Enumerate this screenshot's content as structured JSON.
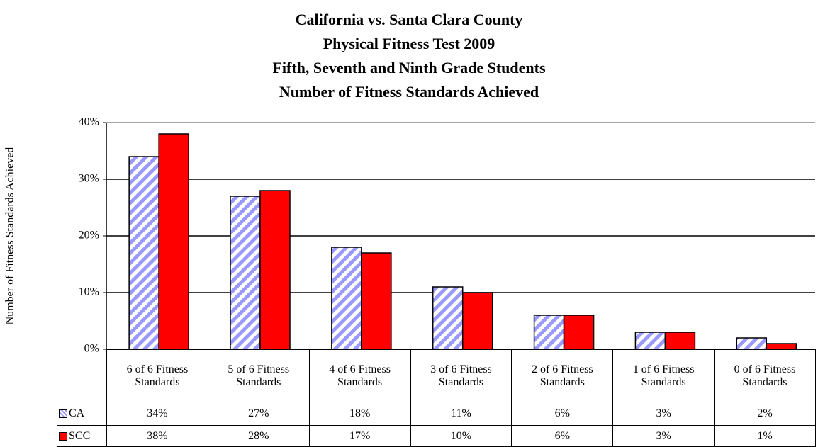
{
  "chart_data": {
    "type": "bar",
    "title": [
      "California vs. Santa Clara County",
      "Physical Fitness Test 2009",
      "Fifth, Seventh and Ninth Grade Students",
      "Number of Fitness Standards Achieved"
    ],
    "y_axis_label": "Number of Fitness Standards Achieved",
    "categories": [
      "6 of 6 Fitness Standards",
      "5 of 6 Fitness Standards",
      "4 of 6 Fitness Standards",
      "3 of 6 Fitness Standards",
      "2 of 6 Fitness Standards",
      "1 of 6 Fitness Standards",
      "0 of 6 Fitness Standards"
    ],
    "series": [
      {
        "name": "CA",
        "color": "#9999ff",
        "pattern": "diagonal-stripes",
        "values": [
          34,
          27,
          18,
          11,
          6,
          3,
          2
        ],
        "value_labels": [
          "34%",
          "27%",
          "18%",
          "11%",
          "6%",
          "3%",
          "2%"
        ]
      },
      {
        "name": "SCC",
        "color": "#ff0000",
        "values": [
          38,
          28,
          17,
          10,
          6,
          3,
          1
        ],
        "value_labels": [
          "38%",
          "28%",
          "17%",
          "10%",
          "6%",
          "3%",
          "1%"
        ]
      }
    ],
    "ylim": [
      0,
      40
    ],
    "yticks": [
      {
        "value": 0,
        "label": "0%"
      },
      {
        "value": 10,
        "label": "10%"
      },
      {
        "value": 20,
        "label": "20%"
      },
      {
        "value": 30,
        "label": "30%"
      },
      {
        "value": 40,
        "label": "40%"
      }
    ],
    "grid": true,
    "data_table": true
  }
}
